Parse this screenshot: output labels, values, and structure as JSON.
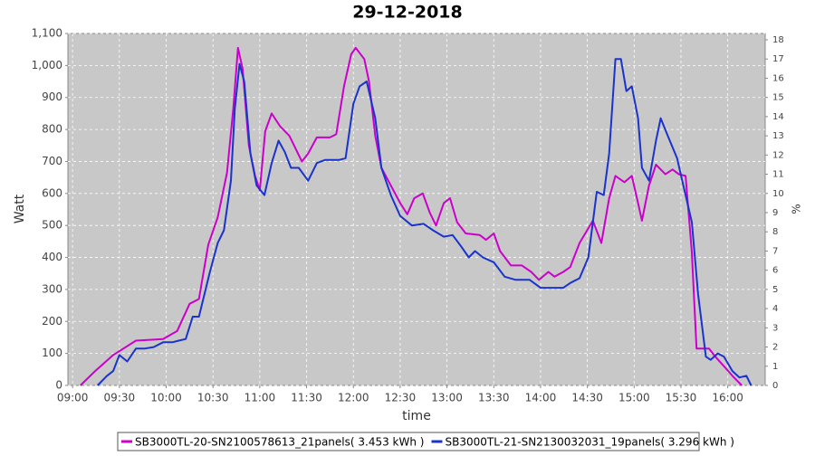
{
  "chart_data": {
    "type": "line",
    "title": "29-12-2018",
    "xlabel": "time",
    "ylabel": "Watt",
    "y2label": "%",
    "xlim": [
      537,
      984
    ],
    "xticks": [
      {
        "value": 540,
        "label": "09:00"
      },
      {
        "value": 570,
        "label": "09:30"
      },
      {
        "value": 600,
        "label": "10:00"
      },
      {
        "value": 630,
        "label": "10:30"
      },
      {
        "value": 660,
        "label": "11:00"
      },
      {
        "value": 690,
        "label": "11:30"
      },
      {
        "value": 720,
        "label": "12:00"
      },
      {
        "value": 750,
        "label": "12:30"
      },
      {
        "value": 780,
        "label": "13:00"
      },
      {
        "value": 810,
        "label": "13:30"
      },
      {
        "value": 840,
        "label": "14:00"
      },
      {
        "value": 870,
        "label": "14:30"
      },
      {
        "value": 900,
        "label": "15:00"
      },
      {
        "value": 930,
        "label": "15:30"
      },
      {
        "value": 960,
        "label": "16:00"
      }
    ],
    "ylim": [
      0,
      1100
    ],
    "yticks": [
      0,
      100,
      200,
      300,
      400,
      500,
      600,
      700,
      800,
      900,
      {
        "value": 1000,
        "label": "1,000"
      },
      {
        "value": 1100,
        "label": "1,100"
      }
    ],
    "y2lim": [
      0,
      18.33
    ],
    "y2ticks": [
      0,
      1,
      2,
      3,
      4,
      5,
      6,
      7,
      8,
      9,
      10,
      11,
      12,
      13,
      14,
      15,
      16,
      17,
      18
    ],
    "grid": true,
    "legend": "bottom",
    "series": [
      {
        "name": "SB3000TL-20-SN2100578613_21panels( 3.453 kWh )",
        "color": "#cc00cc",
        "x": [
          545,
          554.5,
          566,
          580.6,
          598,
          607,
          615,
          621,
          627,
          633,
          639,
          643,
          646,
          649,
          653,
          657,
          660,
          663.5,
          667.6,
          673,
          679,
          687,
          691,
          696.6,
          705,
          709,
          714,
          718.6,
          721.5,
          727,
          730,
          734,
          738,
          744,
          750,
          754.6,
          759,
          764.5,
          769,
          773,
          778,
          782,
          786.5,
          792,
          801,
          805,
          810,
          814,
          821,
          828,
          834,
          839,
          845,
          849,
          854.6,
          859,
          865,
          873.5,
          879,
          884,
          888,
          893.8,
          898.5,
          902.5,
          905,
          909.5,
          914,
          920,
          924.6,
          928.6,
          933,
          937,
          940,
          943,
          948,
          952,
          957.6,
          963,
          969
        ],
        "values": [
          0,
          45,
          95,
          140,
          145,
          170,
          255,
          270,
          440,
          525,
          665,
          865,
          1055,
          990,
          750,
          655,
          610,
          795,
          850,
          810,
          780,
          700,
          725,
          775,
          775,
          785,
          935,
          1035,
          1055,
          1020,
          950,
          780,
          680,
          625,
          570,
          535,
          585,
          600,
          540,
          500,
          570,
          585,
          510,
          475,
          470,
          455,
          475,
          420,
          375,
          375,
          355,
          330,
          355,
          340,
          355,
          370,
          445,
          515,
          445,
          585,
          655,
          635,
          655,
          570,
          515,
          625,
          690,
          660,
          675,
          660,
          655,
          415,
          115,
          115,
          115,
          90,
          60,
          30,
          0
        ]
      },
      {
        "name": "SB3000TL-21-SN2130032031_19panels( 3.296 kWh )",
        "color": "#1a33cc",
        "x": [
          556,
          562,
          566,
          570,
          575,
          580.6,
          586,
          592,
          598,
          604,
          608,
          612.5,
          617,
          621,
          628,
          633,
          637,
          641.5,
          644,
          647,
          650,
          654,
          658,
          663,
          667.6,
          672,
          676,
          680,
          685,
          691,
          696.6,
          702,
          711,
          715,
          720,
          724,
          728.5,
          734,
          738,
          744,
          750,
          757.5,
          765,
          771,
          778,
          783.6,
          789,
          794,
          798,
          803,
          810,
          817,
          824,
          833,
          840,
          847,
          854.6,
          859,
          865,
          870.6,
          876,
          880.5,
          884,
          888,
          891.5,
          895,
          898.5,
          902.5,
          905,
          909.5,
          914,
          917,
          921.6,
          927.5,
          931.5,
          937,
          941,
          946,
          949,
          953.6,
          957.6,
          963,
          967.5,
          972,
          975
        ],
        "values": [
          0,
          30,
          45,
          95,
          75,
          115,
          115,
          120,
          135,
          135,
          140,
          145,
          215,
          215,
          355,
          445,
          485,
          640,
          865,
          1005,
          950,
          725,
          625,
          595,
          695,
          765,
          730,
          680,
          680,
          640,
          695,
          705,
          705,
          710,
          880,
          935,
          950,
          835,
          680,
          595,
          530,
          500,
          505,
          485,
          465,
          470,
          435,
          400,
          420,
          400,
          385,
          340,
          330,
          330,
          305,
          305,
          305,
          320,
          335,
          400,
          605,
          595,
          725,
          1020,
          1020,
          920,
          935,
          835,
          680,
          640,
          765,
          835,
          780,
          710,
          625,
          510,
          285,
          90,
          80,
          100,
          90,
          45,
          25,
          30,
          0
        ]
      }
    ]
  }
}
